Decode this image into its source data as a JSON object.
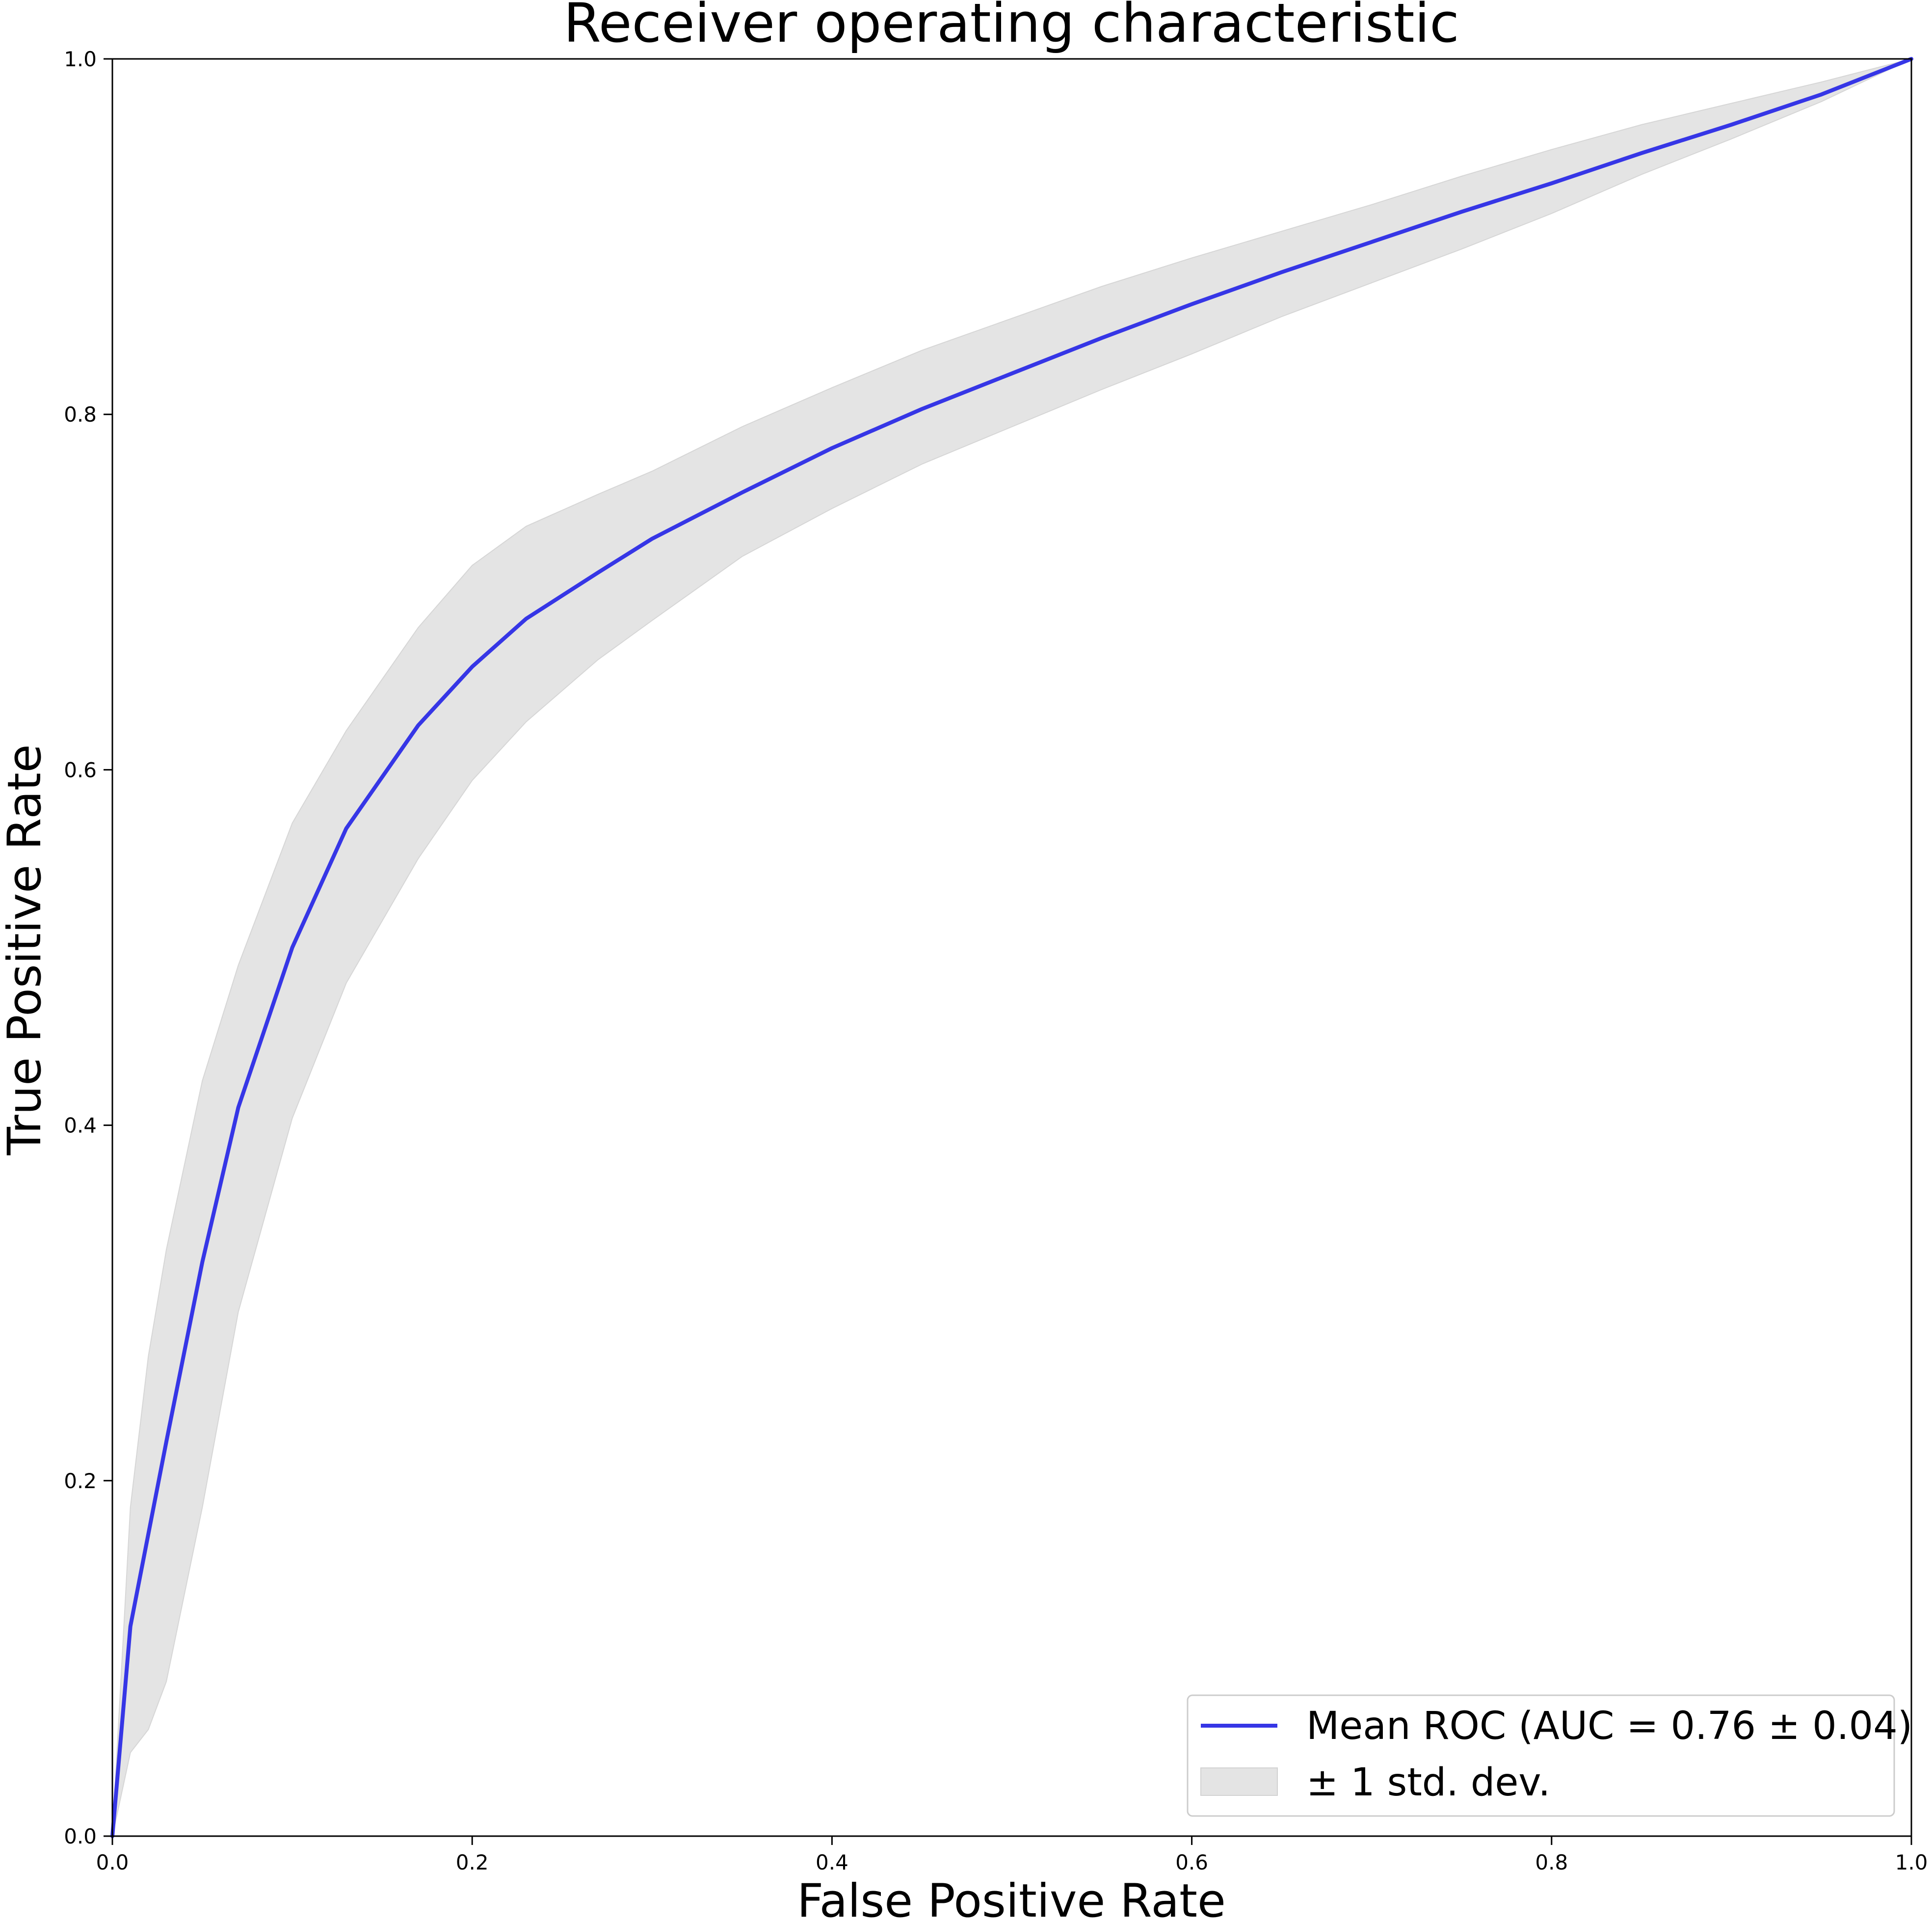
{
  "chart_data": {
    "type": "line",
    "title": "Receiver operating characteristic",
    "xlabel": "False Positive Rate",
    "ylabel": "True Positive Rate",
    "xlim": [
      0.0,
      1.0
    ],
    "ylim": [
      0.0,
      1.0
    ],
    "grid": false,
    "legend_position": "lower-right",
    "x_ticks": [
      "0.0",
      "0.2",
      "0.4",
      "0.6",
      "0.8",
      "1.0"
    ],
    "y_ticks": [
      "0.0",
      "0.2",
      "0.4",
      "0.6",
      "0.8",
      "1.0"
    ],
    "x": [
      0.0,
      0.01,
      0.02,
      0.03,
      0.05,
      0.07,
      0.1,
      0.13,
      0.17,
      0.2,
      0.23,
      0.27,
      0.3,
      0.35,
      0.4,
      0.45,
      0.5,
      0.55,
      0.6,
      0.65,
      0.7,
      0.75,
      0.8,
      0.85,
      0.9,
      0.95,
      1.0
    ],
    "series": [
      {
        "name": "Mean ROC (AUC = 0.76 ± 0.04)",
        "kind": "line",
        "color": "#3636e6",
        "values": [
          0.0,
          0.118,
          0.17,
          0.222,
          0.323,
          0.41,
          0.5,
          0.567,
          0.625,
          0.658,
          0.685,
          0.711,
          0.73,
          0.756,
          0.781,
          0.803,
          0.823,
          0.843,
          0.862,
          0.88,
          0.897,
          0.914,
          0.93,
          0.947,
          0.963,
          0.98,
          1.0
        ]
      },
      {
        "name": "± 1 std. dev.",
        "kind": "band",
        "color": "#e4e4e4",
        "upper": [
          0.0,
          0.185,
          0.27,
          0.33,
          0.425,
          0.49,
          0.57,
          0.622,
          0.68,
          0.715,
          0.737,
          0.755,
          0.768,
          0.793,
          0.815,
          0.836,
          0.854,
          0.872,
          0.888,
          0.903,
          0.918,
          0.934,
          0.949,
          0.963,
          0.975,
          0.987,
          1.0
        ],
        "lower": [
          0.0,
          0.047,
          0.06,
          0.087,
          0.185,
          0.295,
          0.404,
          0.48,
          0.55,
          0.594,
          0.627,
          0.662,
          0.684,
          0.72,
          0.747,
          0.772,
          0.793,
          0.814,
          0.834,
          0.855,
          0.874,
          0.893,
          0.913,
          0.935,
          0.955,
          0.976,
          1.0
        ]
      }
    ]
  }
}
